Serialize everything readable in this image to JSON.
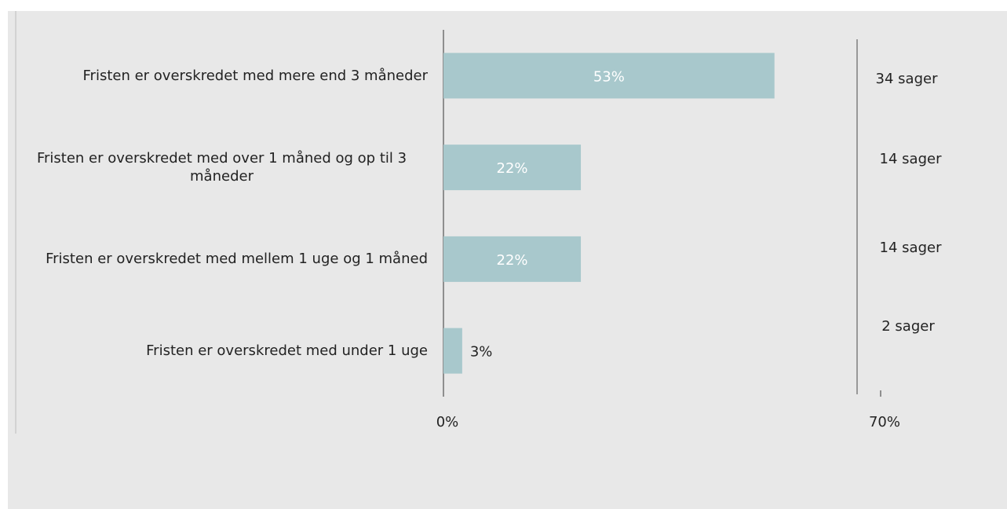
{
  "chart_data": {
    "type": "barh",
    "categories": [
      "Fristen er overskredet med mere end 3 måneder",
      "Fristen er overskredet med over 1 måned og op til 3 måneder",
      "Fristen er overskredet med mellem 1 uge og 1 måned",
      "Fristen er overskredet med under 1 uge"
    ],
    "values": [
      53,
      22,
      22,
      3
    ],
    "value_labels": [
      "53%",
      "22%",
      "22%",
      "3%"
    ],
    "annotations": [
      "34 sager",
      "14 sager",
      "14 sager",
      "2 sager"
    ],
    "color": "#a8c8cc",
    "xlim": [
      0,
      70
    ],
    "xticks": [
      {
        "value": 0,
        "label": "0%"
      },
      {
        "value": 70,
        "label": "70%"
      }
    ]
  }
}
